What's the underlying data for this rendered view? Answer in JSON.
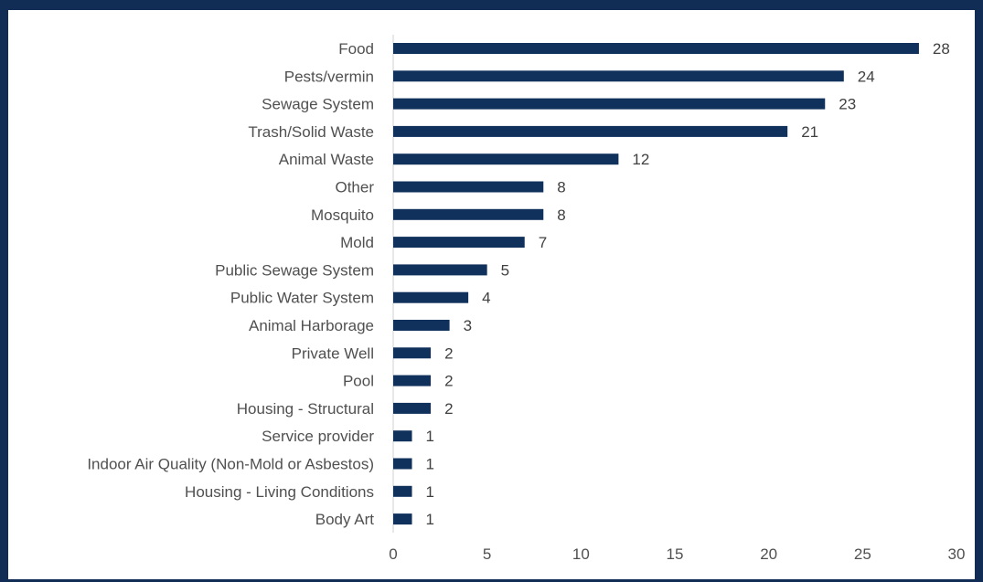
{
  "chart_data": {
    "type": "bar",
    "orientation": "horizontal",
    "categories": [
      "Food",
      "Pests/vermin",
      "Sewage System",
      "Trash/Solid Waste",
      "Animal Waste",
      "Other",
      "Mosquito",
      "Mold",
      "Public Sewage System",
      "Public Water System",
      "Animal Harborage",
      "Private Well",
      "Pool",
      "Housing - Structural",
      "Service provider",
      "Indoor Air Quality (Non-Mold or Asbestos)",
      "Housing - Living Conditions",
      "Body Art"
    ],
    "values": [
      28,
      24,
      23,
      21,
      12,
      8,
      8,
      7,
      5,
      4,
      3,
      2,
      2,
      2,
      1,
      1,
      1,
      1
    ],
    "xlim": [
      0,
      30
    ],
    "xticks": [
      0,
      5,
      10,
      15,
      20,
      25,
      30
    ],
    "title": "",
    "xlabel": "",
    "ylabel": "",
    "grid": false,
    "legend": "none",
    "data_labels": true,
    "bar_color": "#10315c",
    "frame_color": "#112d55"
  }
}
